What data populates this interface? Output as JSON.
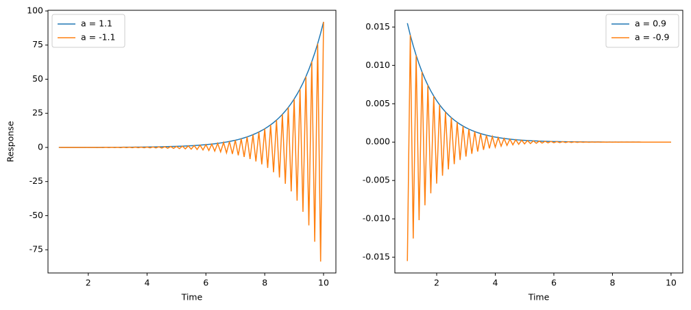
{
  "chart_data": [
    {
      "type": "line",
      "xlabel": "Time",
      "ylabel": "Response",
      "legend": "upper left",
      "x": [
        1,
        1.1,
        1.2,
        1.3,
        1.4,
        1.5,
        1.6,
        1.7,
        1.8,
        1.9,
        2,
        2.1,
        2.2,
        2.3,
        2.4,
        2.5,
        2.6,
        2.7,
        2.8,
        2.9,
        3,
        3.1,
        3.2,
        3.3,
        3.4,
        3.5,
        3.6,
        3.7,
        3.8,
        3.9,
        4,
        4.1,
        4.2,
        4.3,
        4.4,
        4.5,
        4.6,
        4.7,
        4.8,
        4.9,
        5,
        5.1,
        5.2,
        5.3,
        5.4,
        5.5,
        5.6,
        5.7,
        5.8,
        5.9,
        6,
        6.1,
        6.2,
        6.3,
        6.4,
        6.5,
        6.6,
        6.7,
        6.8,
        6.9,
        7,
        7.1,
        7.2,
        7.3,
        7.4,
        7.5,
        7.6,
        7.7,
        7.8,
        7.9,
        8,
        8.1,
        8.2,
        8.3,
        8.4,
        8.5,
        8.6,
        8.7,
        8.8,
        8.9,
        9,
        9.1,
        9.2,
        9.3,
        9.4,
        9.5,
        9.6,
        9.7,
        9.8,
        9.9,
        10
      ],
      "series": [
        {
          "name": "a = 1.1",
          "color": "#1f77b4",
          "values": [
            0.0173,
            0.0191,
            0.021,
            0.0231,
            0.0254,
            0.0279,
            0.0307,
            0.0338,
            0.0371,
            0.0409,
            0.0449,
            0.0494,
            0.0544,
            0.0598,
            0.0658,
            0.0724,
            0.0796,
            0.0875,
            0.0963,
            0.1059,
            0.1165,
            0.1282,
            0.141,
            0.1551,
            0.1706,
            0.1877,
            0.2064,
            0.2271,
            0.2498,
            0.2747,
            0.3022,
            0.3324,
            0.3657,
            0.4022,
            0.4425,
            0.4867,
            0.5354,
            0.5889,
            0.6478,
            0.7126,
            0.7838,
            0.8622,
            0.9484,
            1.043,
            1.148,
            1.262,
            1.389,
            1.527,
            1.68,
            1.848,
            2.033,
            2.236,
            2.46,
            2.706,
            2.976,
            3.274,
            3.601,
            3.962,
            4.358,
            4.794,
            5.273,
            5.8,
            6.38,
            7.018,
            7.72,
            8.492,
            9.341,
            10.28,
            11.3,
            12.43,
            13.68,
            15.04,
            16.55,
            18.2,
            20.02,
            22.02,
            24.23,
            26.65,
            29.31,
            32.25,
            35.47,
            39.02,
            42.92,
            47.21,
            51.93,
            57.13,
            62.84,
            69.12,
            76.03,
            83.64,
            92
          ]
        },
        {
          "name": "a = -1.1",
          "color": "#ff7f0e",
          "values": [
            0.0173,
            -0.0191,
            0.021,
            -0.0231,
            0.0254,
            -0.0279,
            0.0307,
            -0.0338,
            0.0371,
            -0.0409,
            0.0449,
            -0.0494,
            0.0544,
            -0.0598,
            0.0658,
            -0.0724,
            0.0796,
            -0.0875,
            0.0963,
            -0.1059,
            0.1165,
            -0.1282,
            0.141,
            -0.1551,
            0.1706,
            -0.1877,
            0.2064,
            -0.2271,
            0.2498,
            -0.2747,
            0.3022,
            -0.3324,
            0.3657,
            -0.4022,
            0.4425,
            -0.4867,
            0.5354,
            -0.5889,
            0.6478,
            -0.7126,
            0.7838,
            -0.8622,
            0.9484,
            -1.043,
            1.148,
            -1.262,
            1.389,
            -1.527,
            1.68,
            -1.848,
            2.033,
            -2.236,
            2.46,
            -2.706,
            2.976,
            -3.274,
            3.601,
            -3.962,
            4.358,
            -4.794,
            5.273,
            -5.8,
            6.38,
            -7.018,
            7.72,
            -8.492,
            9.341,
            -10.28,
            11.3,
            -12.43,
            13.68,
            -15.04,
            16.55,
            -18.2,
            20.02,
            -22.02,
            24.23,
            -26.65,
            29.31,
            -32.25,
            35.47,
            -39.02,
            42.92,
            -47.21,
            51.93,
            -57.13,
            62.84,
            -69.12,
            76.03,
            -83.64,
            92
          ]
        }
      ],
      "xlim": [
        0.63,
        10.42
      ],
      "xticks": [
        2,
        4,
        6,
        8,
        10
      ],
      "ylim": [
        -92,
        100.5
      ],
      "yticks": [
        -75,
        -50,
        -25,
        0,
        25,
        50,
        75,
        100
      ]
    },
    {
      "type": "line",
      "xlabel": "Time",
      "legend": "upper right",
      "x": [
        1,
        1.1,
        1.2,
        1.3,
        1.4,
        1.5,
        1.6,
        1.7,
        1.8,
        1.9,
        2,
        2.1,
        2.2,
        2.3,
        2.4,
        2.5,
        2.6,
        2.7,
        2.8,
        2.9,
        3,
        3.1,
        3.2,
        3.3,
        3.4,
        3.5,
        3.6,
        3.7,
        3.8,
        3.9,
        4,
        4.1,
        4.2,
        4.3,
        4.4,
        4.5,
        4.6,
        4.7,
        4.8,
        4.9,
        5,
        5.1,
        5.2,
        5.3,
        5.4,
        5.5,
        5.6,
        5.7,
        5.8,
        5.9,
        6,
        6.1,
        6.2,
        6.3,
        6.4,
        6.5,
        6.6,
        6.7,
        6.8,
        6.9,
        7,
        7.1,
        7.2,
        7.3,
        7.4,
        7.5,
        7.6,
        7.7,
        7.8,
        7.9,
        8,
        8.1,
        8.2,
        8.3,
        8.4,
        8.5,
        8.6,
        8.7,
        8.8,
        8.9,
        9,
        9.1,
        9.2,
        9.3,
        9.4,
        9.5,
        9.6,
        9.7,
        9.8,
        9.9,
        10
      ],
      "series": [
        {
          "name": "a = 0.9",
          "color": "#1f77b4",
          "values": [
            0.0155,
            0.01395,
            0.01256,
            0.0113,
            0.01017,
            0.009153,
            0.008237,
            0.007414,
            0.006672,
            0.006005,
            0.005404,
            0.004864,
            0.004378,
            0.00394,
            0.003546,
            0.003191,
            0.002872,
            0.002585,
            0.002326,
            0.002094,
            0.001884,
            0.001696,
            0.001526,
            0.001374,
            0.001236,
            0.001113,
            0.001001,
            0.000901,
            0.000811,
            0.00073,
            0.000657,
            0.000591,
            0.000532,
            0.000479,
            0.000431,
            0.000388,
            0.000349,
            0.000314,
            0.000283,
            0.000254,
            0.000229,
            0.000206,
            0.000185,
            0.000167,
            0.00015,
            0.000135,
            0.000122,
            0.000109,
            9.85e-05,
            8.87e-05,
            7.99e-05,
            7.19e-05,
            6.47e-05,
            5.82e-05,
            5.24e-05,
            4.72e-05,
            4.25e-05,
            3.82e-05,
            3.44e-05,
            3.1e-05,
            2.79e-05,
            2.51e-05,
            2.26e-05,
            2.03e-05,
            1.83e-05,
            1.65e-05,
            1.48e-05,
            1.33e-05,
            1.2e-05,
            1.08e-05,
            9.7e-06,
            8.7e-06,
            7.9e-06,
            7.1e-06,
            6.4e-06,
            5.7e-06,
            5.2e-06,
            4.6e-06,
            4.2e-06,
            3.8e-06,
            3.4e-06,
            3e-06,
            2.7e-06,
            2.5e-06,
            2.2e-06,
            2e-06,
            1.8e-06,
            1.6e-06,
            1.4e-06,
            1.3e-06,
            1.2e-06
          ]
        },
        {
          "name": "a = -0.9",
          "color": "#ff7f0e",
          "values": [
            -0.0155,
            0.01395,
            -0.01256,
            0.0113,
            -0.01017,
            0.009153,
            -0.008237,
            0.007414,
            -0.006672,
            0.006005,
            -0.005404,
            0.004864,
            -0.004378,
            0.00394,
            -0.003546,
            0.003191,
            -0.002872,
            0.002585,
            -0.002326,
            0.002094,
            -0.001884,
            0.001696,
            -0.001526,
            0.001374,
            -0.001236,
            0.001113,
            -0.001001,
            0.000901,
            -0.000811,
            0.00073,
            -0.000657,
            0.000591,
            -0.000532,
            0.000479,
            -0.000431,
            0.000388,
            -0.000349,
            0.000314,
            -0.000283,
            0.000254,
            -0.000229,
            0.000206,
            -0.000185,
            0.000167,
            -0.00015,
            0.000135,
            -0.000122,
            0.000109,
            -9.85e-05,
            8.87e-05,
            -7.99e-05,
            7.19e-05,
            -6.47e-05,
            5.82e-05,
            -5.24e-05,
            4.72e-05,
            -4.25e-05,
            3.82e-05,
            -3.44e-05,
            3.1e-05,
            -2.79e-05,
            2.51e-05,
            -2.26e-05,
            2.03e-05,
            -1.83e-05,
            1.65e-05,
            -1.48e-05,
            1.33e-05,
            -1.2e-05,
            1.08e-05,
            -9.7e-06,
            8.7e-06,
            -7.9e-06,
            7.1e-06,
            -6.4e-06,
            5.7e-06,
            -5.2e-06,
            4.6e-06,
            -4.2e-06,
            3.8e-06,
            -3.4e-06,
            3e-06,
            -2.7e-06,
            2.5e-06,
            -2.2e-06,
            2e-06,
            -1.8e-06,
            1.6e-06,
            -1.4e-06,
            1.3e-06,
            -1.2e-06
          ]
        }
      ],
      "xlim": [
        0.573,
        10.4
      ],
      "xticks": [
        2,
        4,
        6,
        8,
        10
      ],
      "ylim": [
        -0.01705,
        0.01718
      ],
      "yticks": [
        -0.015,
        {
          "value": -0.01,
          "label": "-0.010"
        },
        -0.005,
        {
          "value": 0,
          "label": "0.000"
        },
        0.005,
        {
          "value": 0.01,
          "label": "0.010"
        },
        0.015
      ]
    }
  ]
}
